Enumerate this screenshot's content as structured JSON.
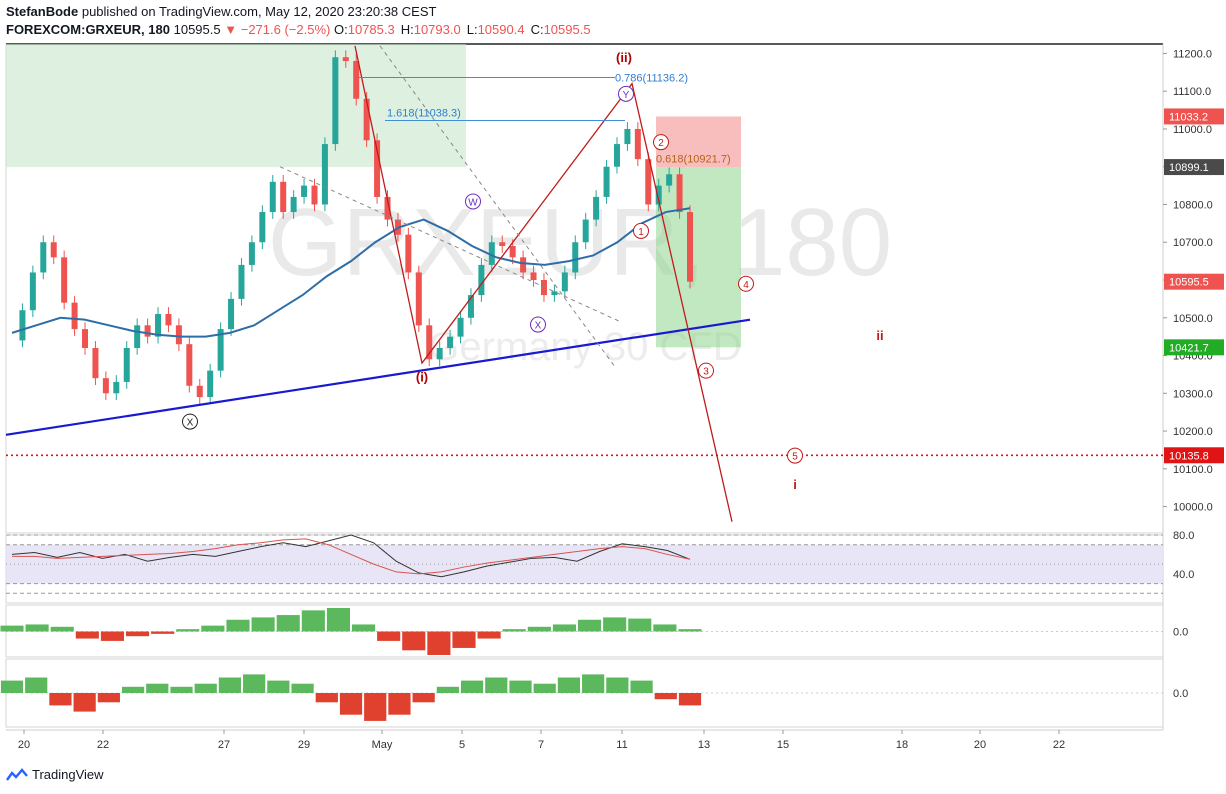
{
  "header": {
    "author": "StefanBode",
    "published_text": " published on TradingView.com, May 12, 2020 23:20:38 CEST",
    "symbol": "FOREXCOM:GRXEUR, 180",
    "last": "10595.5",
    "change_arrow": "▼",
    "change": "−271.6 (−2.5%)",
    "o_label": "O:",
    "o": "10785.3",
    "h_label": "H:",
    "h": "10793.0",
    "l_label": "L:",
    "l": "10590.4",
    "c_label": "C:",
    "c": "10595.5"
  },
  "watermark": {
    "main": "GRXEUR, 180",
    "sub": "Germany 30 CFD"
  },
  "footer": {
    "brand": "TradingView"
  },
  "colors": {
    "up": "#26a69a",
    "down": "#ef5350",
    "ma": "#2e6ea6",
    "trend": "#1919d2",
    "wave": "#c21a1a"
  },
  "chart_data": [
    {
      "type": "candlestick",
      "ylim": [
        9930,
        11225
      ],
      "y_ticks": [
        "11200.0",
        "11100.0",
        "11000.0",
        "10900.0",
        "10800.0",
        "10700.0",
        "10600.0",
        "10500.0",
        "10400.0",
        "10300.0",
        "10200.0",
        "10100.0",
        "10000.0"
      ],
      "x_ticks": [
        "20",
        "22",
        "27",
        "29",
        "May",
        "5",
        "7",
        "11",
        "13",
        "15",
        "18",
        "20",
        "22"
      ],
      "price_tags": [
        {
          "label": "11033.2",
          "value": 11033.2,
          "color": "#ef5350"
        },
        {
          "label": "10899.1",
          "value": 10899.1,
          "color": "#4a4a4a"
        },
        {
          "label": "10595.5",
          "value": 10595.5,
          "color": "#ef5350"
        },
        {
          "label": "10421.7",
          "value": 10421.7,
          "color": "#22ab24"
        },
        {
          "label": "10135.8",
          "value": 10135.8,
          "color": "#e01414"
        }
      ],
      "fib_labels": [
        {
          "text": "0.786(11136.2)",
          "value": 11136.2
        },
        {
          "text": "1.618(11038.3)",
          "value": 11038.3
        },
        {
          "text": "0.618(10921.7)",
          "value": 10921.7
        }
      ],
      "wave_labels": [
        "(ii)",
        "(i)",
        "i",
        "ii",
        "1",
        "2",
        "3",
        "4",
        "5",
        "W",
        "X",
        "Y",
        "X"
      ],
      "series": [
        {
          "name": "price",
          "values": [
            10440,
            10520,
            10620,
            10700,
            10660,
            10540,
            10470,
            10420,
            10340,
            10300,
            10330,
            10420,
            10480,
            10450,
            10510,
            10480,
            10430,
            10320,
            10290,
            10360,
            10470,
            10550,
            10640,
            10700,
            10780,
            10860,
            10780,
            10820,
            10850,
            10800,
            10960,
            11190,
            11180,
            11080,
            10970,
            10820,
            10760,
            10720,
            10620,
            10480,
            10390,
            10420,
            10450,
            10500,
            10560,
            10640,
            10700,
            10690,
            10660,
            10620,
            10600,
            10560,
            10570,
            10620,
            10700,
            10760,
            10820,
            10900,
            10960,
            11000,
            10920,
            10800,
            10850,
            10880,
            10780,
            10595.5
          ]
        },
        {
          "name": "ma",
          "values": [
            10460,
            10480,
            10500,
            10495,
            10480,
            10465,
            10455,
            10450,
            10450,
            10460,
            10480,
            10520,
            10560,
            10610,
            10650,
            10700,
            10740,
            10760,
            10730,
            10690,
            10660,
            10645,
            10640,
            10650,
            10665,
            10700,
            10750,
            10780,
            10790
          ]
        }
      ]
    },
    {
      "type": "line",
      "ylim": [
        10,
        80
      ],
      "y_ticks": [
        "80.0",
        "40.0"
      ],
      "series": [
        {
          "name": "rsi",
          "values": [
            60,
            62,
            57,
            62,
            56,
            60,
            53,
            57,
            60,
            58,
            63,
            68,
            72,
            68,
            74,
            80,
            72,
            53,
            41,
            37,
            42,
            48,
            52,
            56,
            57,
            53,
            63,
            71,
            68,
            64,
            55
          ]
        },
        {
          "name": "rsi-ma",
          "values": [
            58,
            58,
            56,
            57,
            58,
            59,
            60,
            61,
            63,
            66,
            70,
            72,
            75,
            76,
            70,
            60,
            50,
            42,
            40,
            42,
            47,
            51,
            54,
            57,
            60,
            63,
            66,
            68,
            66,
            60,
            55
          ]
        }
      ]
    },
    {
      "type": "bar",
      "ylim": [
        -1,
        1
      ],
      "y_ticks": [
        "0.0"
      ],
      "series": [
        {
          "name": "momentum",
          "values": [
            0.25,
            0.3,
            0.2,
            -0.3,
            -0.4,
            -0.2,
            -0.1,
            0.1,
            0.25,
            0.5,
            0.6,
            0.7,
            0.9,
            1.0,
            0.3,
            -0.4,
            -0.8,
            -1.0,
            -0.7,
            -0.3,
            0.1,
            0.2,
            0.3,
            0.5,
            0.6,
            0.55,
            0.3,
            0.1
          ]
        }
      ]
    },
    {
      "type": "bar",
      "ylim": [
        -1,
        1
      ],
      "y_ticks": [
        "0.0"
      ],
      "series": [
        {
          "name": "histogram",
          "values": [
            0.4,
            0.5,
            -0.4,
            -0.6,
            -0.3,
            0.2,
            0.3,
            0.2,
            0.3,
            0.5,
            0.6,
            0.4,
            0.3,
            -0.3,
            -0.7,
            -0.9,
            -0.7,
            -0.3,
            0.2,
            0.4,
            0.5,
            0.4,
            0.3,
            0.5,
            0.6,
            0.5,
            0.4,
            -0.2,
            -0.4
          ]
        }
      ]
    }
  ]
}
